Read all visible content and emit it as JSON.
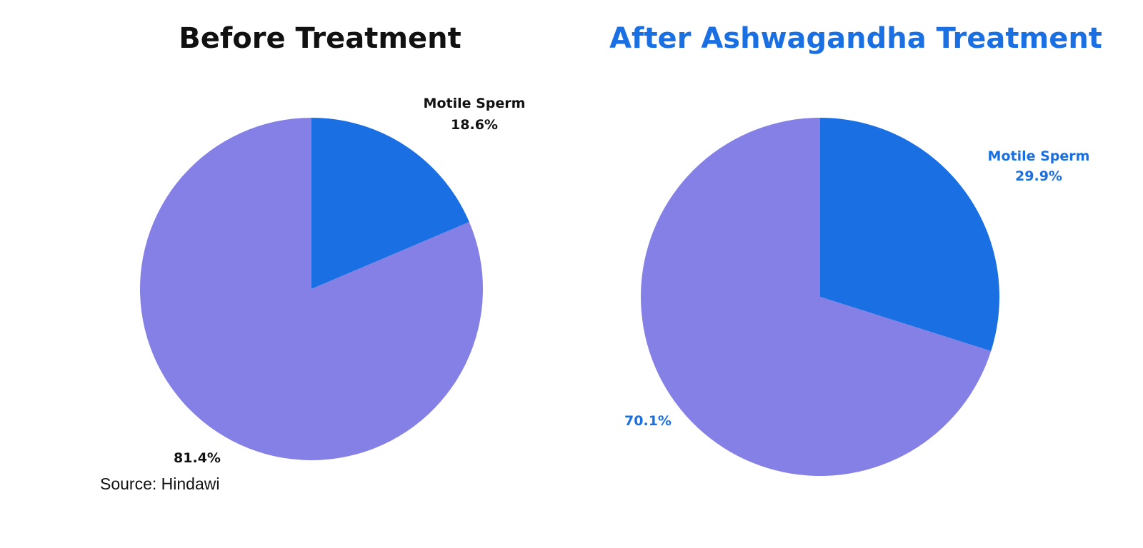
{
  "colors": {
    "motile": "#1a70e3",
    "other": "#8480e6",
    "title_left": "#111111",
    "title_right": "#1a70e3",
    "label_left": "#111111",
    "label_right": "#1a70e3",
    "source": "#111111"
  },
  "chart_data": [
    {
      "type": "pie",
      "title": "Before Treatment",
      "slices": [
        {
          "label": "Motile Sperm",
          "value": 18.6,
          "value_label": "18.6%"
        },
        {
          "label": "",
          "value": 81.4,
          "value_label": "81.4%"
        }
      ]
    },
    {
      "type": "pie",
      "title": "After Ashwagandha Treatment",
      "slices": [
        {
          "label": "Motile Sperm",
          "value": 29.9,
          "value_label": "29.9%"
        },
        {
          "label": "",
          "value": 70.1,
          "value_label": "70.1%"
        }
      ]
    }
  ],
  "source": "Source: Hindawi"
}
